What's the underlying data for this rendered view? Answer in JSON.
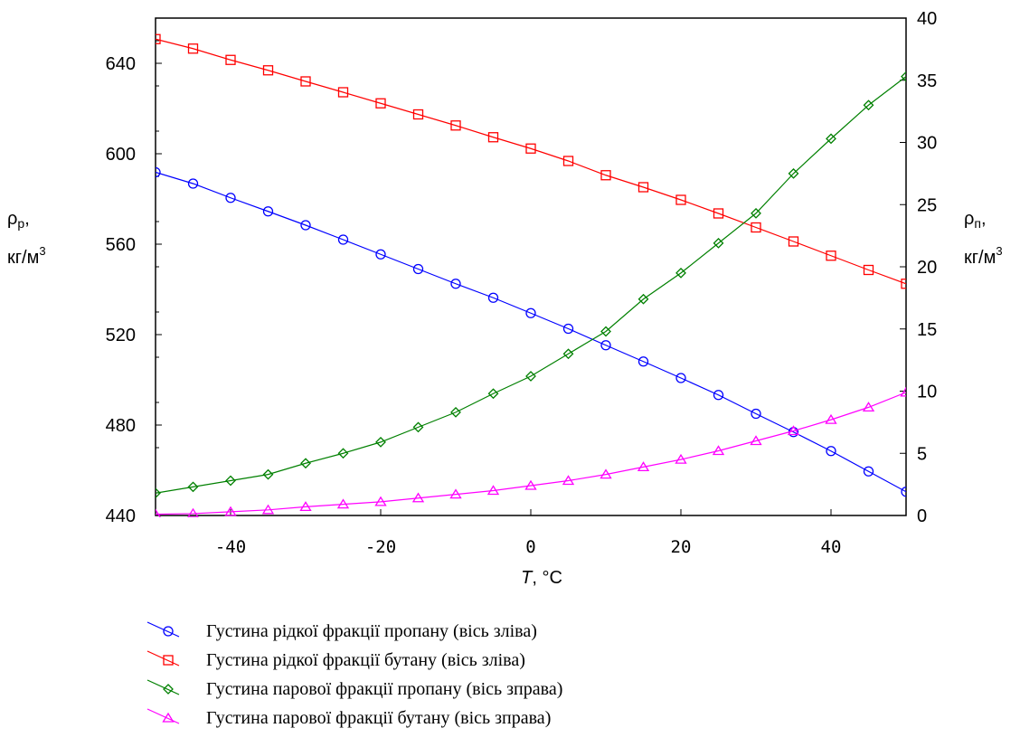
{
  "chart_data": {
    "type": "line",
    "x": [
      -50,
      -45,
      -40,
      -35,
      -30,
      -25,
      -20,
      -15,
      -10,
      -5,
      0,
      5,
      10,
      15,
      20,
      25,
      30,
      35,
      40,
      45,
      50
    ],
    "xlabel_var": "T",
    "xlabel_unit": ", °C",
    "xlim": [
      -50,
      50
    ],
    "xticks": [
      -40,
      -20,
      0,
      20,
      40
    ],
    "ylim_left": [
      440,
      660
    ],
    "yticks_left": [
      440,
      480,
      520,
      560,
      600,
      640
    ],
    "ylabel_left_line1": "ρ",
    "ylabel_left_sub": "р",
    "ylabel_left_comma": ",",
    "ylabel_left_line2": "кг/м",
    "ylabel_left_sup": "3",
    "ylim_right": [
      0,
      40
    ],
    "yticks_right": [
      0,
      5,
      10,
      15,
      20,
      25,
      30,
      35,
      40
    ],
    "ylabel_right_line1": "ρ",
    "ylabel_right_sub": "п",
    "ylabel_right_comma": ",",
    "ylabel_right_line2": "кг/м",
    "ylabel_right_sup": "3",
    "series": [
      {
        "name": "Густина рідкої фракції пропану (вісь зліва)",
        "axis": "left",
        "color": "#0000ff",
        "marker": "circle",
        "values": [
          591.8,
          586.8,
          580.5,
          574.5,
          568.4,
          562.0,
          555.5,
          549.0,
          542.5,
          536.3,
          529.5,
          522.6,
          515.3,
          508.1,
          500.8,
          493.3,
          485.0,
          476.9,
          468.5,
          459.5,
          450.5
        ]
      },
      {
        "name": "Густина рідкої фракції бутану (вісь зліва)",
        "axis": "left",
        "color": "#ff0000",
        "marker": "square",
        "values": [
          650.7,
          646.5,
          641.5,
          636.9,
          632.0,
          627.2,
          622.3,
          617.4,
          612.5,
          607.3,
          602.3,
          596.8,
          590.5,
          585.2,
          579.6,
          573.6,
          567.4,
          561.2,
          554.9,
          548.6,
          542.5
        ]
      },
      {
        "name": "Густина парової фракції пропану (вісь зправа)",
        "axis": "right",
        "color": "#008000",
        "marker": "diamond",
        "values": [
          1.8,
          2.3,
          2.8,
          3.3,
          4.2,
          5.0,
          5.9,
          7.1,
          8.3,
          9.8,
          11.2,
          13.0,
          14.8,
          17.4,
          19.5,
          21.9,
          24.3,
          27.5,
          30.3,
          33.0,
          35.3
        ]
      },
      {
        "name": "Густина парової фракції бутану (вісь зправа)",
        "axis": "right",
        "color": "#ff00ff",
        "marker": "triangle",
        "values": [
          0.1,
          0.15,
          0.3,
          0.45,
          0.7,
          0.9,
          1.1,
          1.4,
          1.7,
          2.0,
          2.4,
          2.8,
          3.3,
          3.9,
          4.5,
          5.2,
          6.0,
          6.8,
          7.7,
          8.7,
          9.9
        ]
      }
    ]
  }
}
